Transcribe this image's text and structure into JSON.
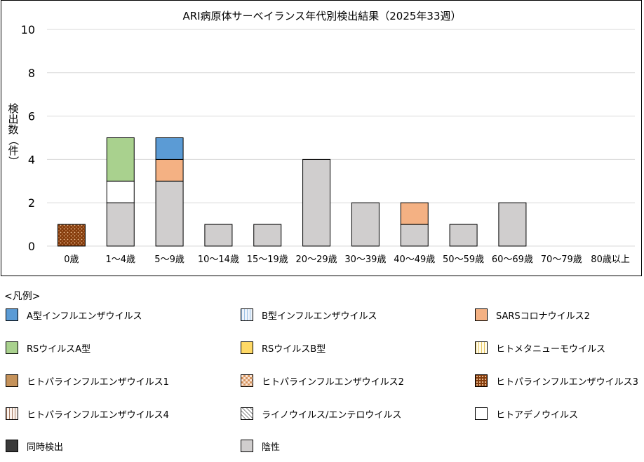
{
  "chart_data": {
    "type": "bar",
    "stacked": true,
    "title": "ARI病原体サーベイランス年代別検出結果（2025年33週）",
    "ylabel": "検出数（件）",
    "ylim": [
      0,
      10
    ],
    "yticks": [
      0,
      2,
      4,
      6,
      8,
      10
    ],
    "grid": true,
    "categories": [
      "0歳",
      "1～4歳",
      "5～9歳",
      "10～14歳",
      "15～19歳",
      "20～29歳",
      "30～39歳",
      "40～49歳",
      "50～59歳",
      "60～69歳",
      "70～79歳",
      "80歳以上"
    ],
    "series": [
      {
        "name": "陰性",
        "color": "#d0cece",
        "values": [
          0,
          2,
          3,
          1,
          1,
          4,
          2,
          1,
          1,
          2,
          0,
          0
        ]
      },
      {
        "name": "ヒトアデノウイルス",
        "color": "#ffffff",
        "values": [
          0,
          1,
          0,
          0,
          0,
          0,
          0,
          0,
          0,
          0,
          0,
          0
        ]
      },
      {
        "name": "ヒトパラインフルエンザウイルス3",
        "color": "#843c0c",
        "pattern": "dots",
        "values": [
          1,
          0,
          0,
          0,
          0,
          0,
          0,
          0,
          0,
          0,
          0,
          0
        ]
      },
      {
        "name": "SARSコロナウイルス2",
        "color": "#f4b183",
        "values": [
          0,
          0,
          1,
          0,
          0,
          0,
          0,
          1,
          0,
          0,
          0,
          0
        ]
      },
      {
        "name": "RSウイルスA型",
        "color": "#a9d18e",
        "values": [
          0,
          2,
          0,
          0,
          0,
          0,
          0,
          0,
          0,
          0,
          0,
          0
        ]
      },
      {
        "name": "A型インフルエンザウイルス",
        "color": "#5b9bd5",
        "values": [
          0,
          0,
          1,
          0,
          0,
          0,
          0,
          0,
          0,
          0,
          0,
          0
        ]
      }
    ]
  },
  "legend": {
    "header": "<凡例>",
    "items": [
      {
        "label": "A型インフルエンザウイルス",
        "color": "#5b9bd5",
        "pattern": "solid"
      },
      {
        "label": "B型インフルエンザウイルス",
        "color": "#deebf7",
        "pattern": "vlines-blue"
      },
      {
        "label": "SARSコロナウイルス2",
        "color": "#f4b183",
        "pattern": "solid"
      },
      {
        "label": "RSウイルスA型",
        "color": "#a9d18e",
        "pattern": "solid"
      },
      {
        "label": "RSウイルスB型",
        "color": "#ffd966",
        "pattern": "solid"
      },
      {
        "label": "ヒトメタニューモウイルス",
        "color": "#fff2cc",
        "pattern": "vlines-yellow"
      },
      {
        "label": "ヒトパラインフルエンザウイルス1",
        "color": "#c5925a",
        "pattern": "solid"
      },
      {
        "label": "ヒトパラインフルエンザウイルス2",
        "color": "#f8cbad",
        "pattern": "checker"
      },
      {
        "label": "ヒトパラインフルエンザウイルス3",
        "color": "#843c0c",
        "pattern": "dots"
      },
      {
        "label": "ヒトパラインフルエンザウイルス4",
        "color": "#f2e6de",
        "pattern": "vlines-brown"
      },
      {
        "label": "ライノウイルス/エンテロウイルス",
        "color": "#ffffff",
        "pattern": "crosshatch"
      },
      {
        "label": "ヒトアデノウイルス",
        "color": "#ffffff",
        "pattern": "solid"
      },
      {
        "label": "同時検出",
        "color": "#3a3a3a",
        "pattern": "solid"
      },
      {
        "label": "陰性",
        "color": "#d0cece",
        "pattern": "solid"
      }
    ]
  }
}
